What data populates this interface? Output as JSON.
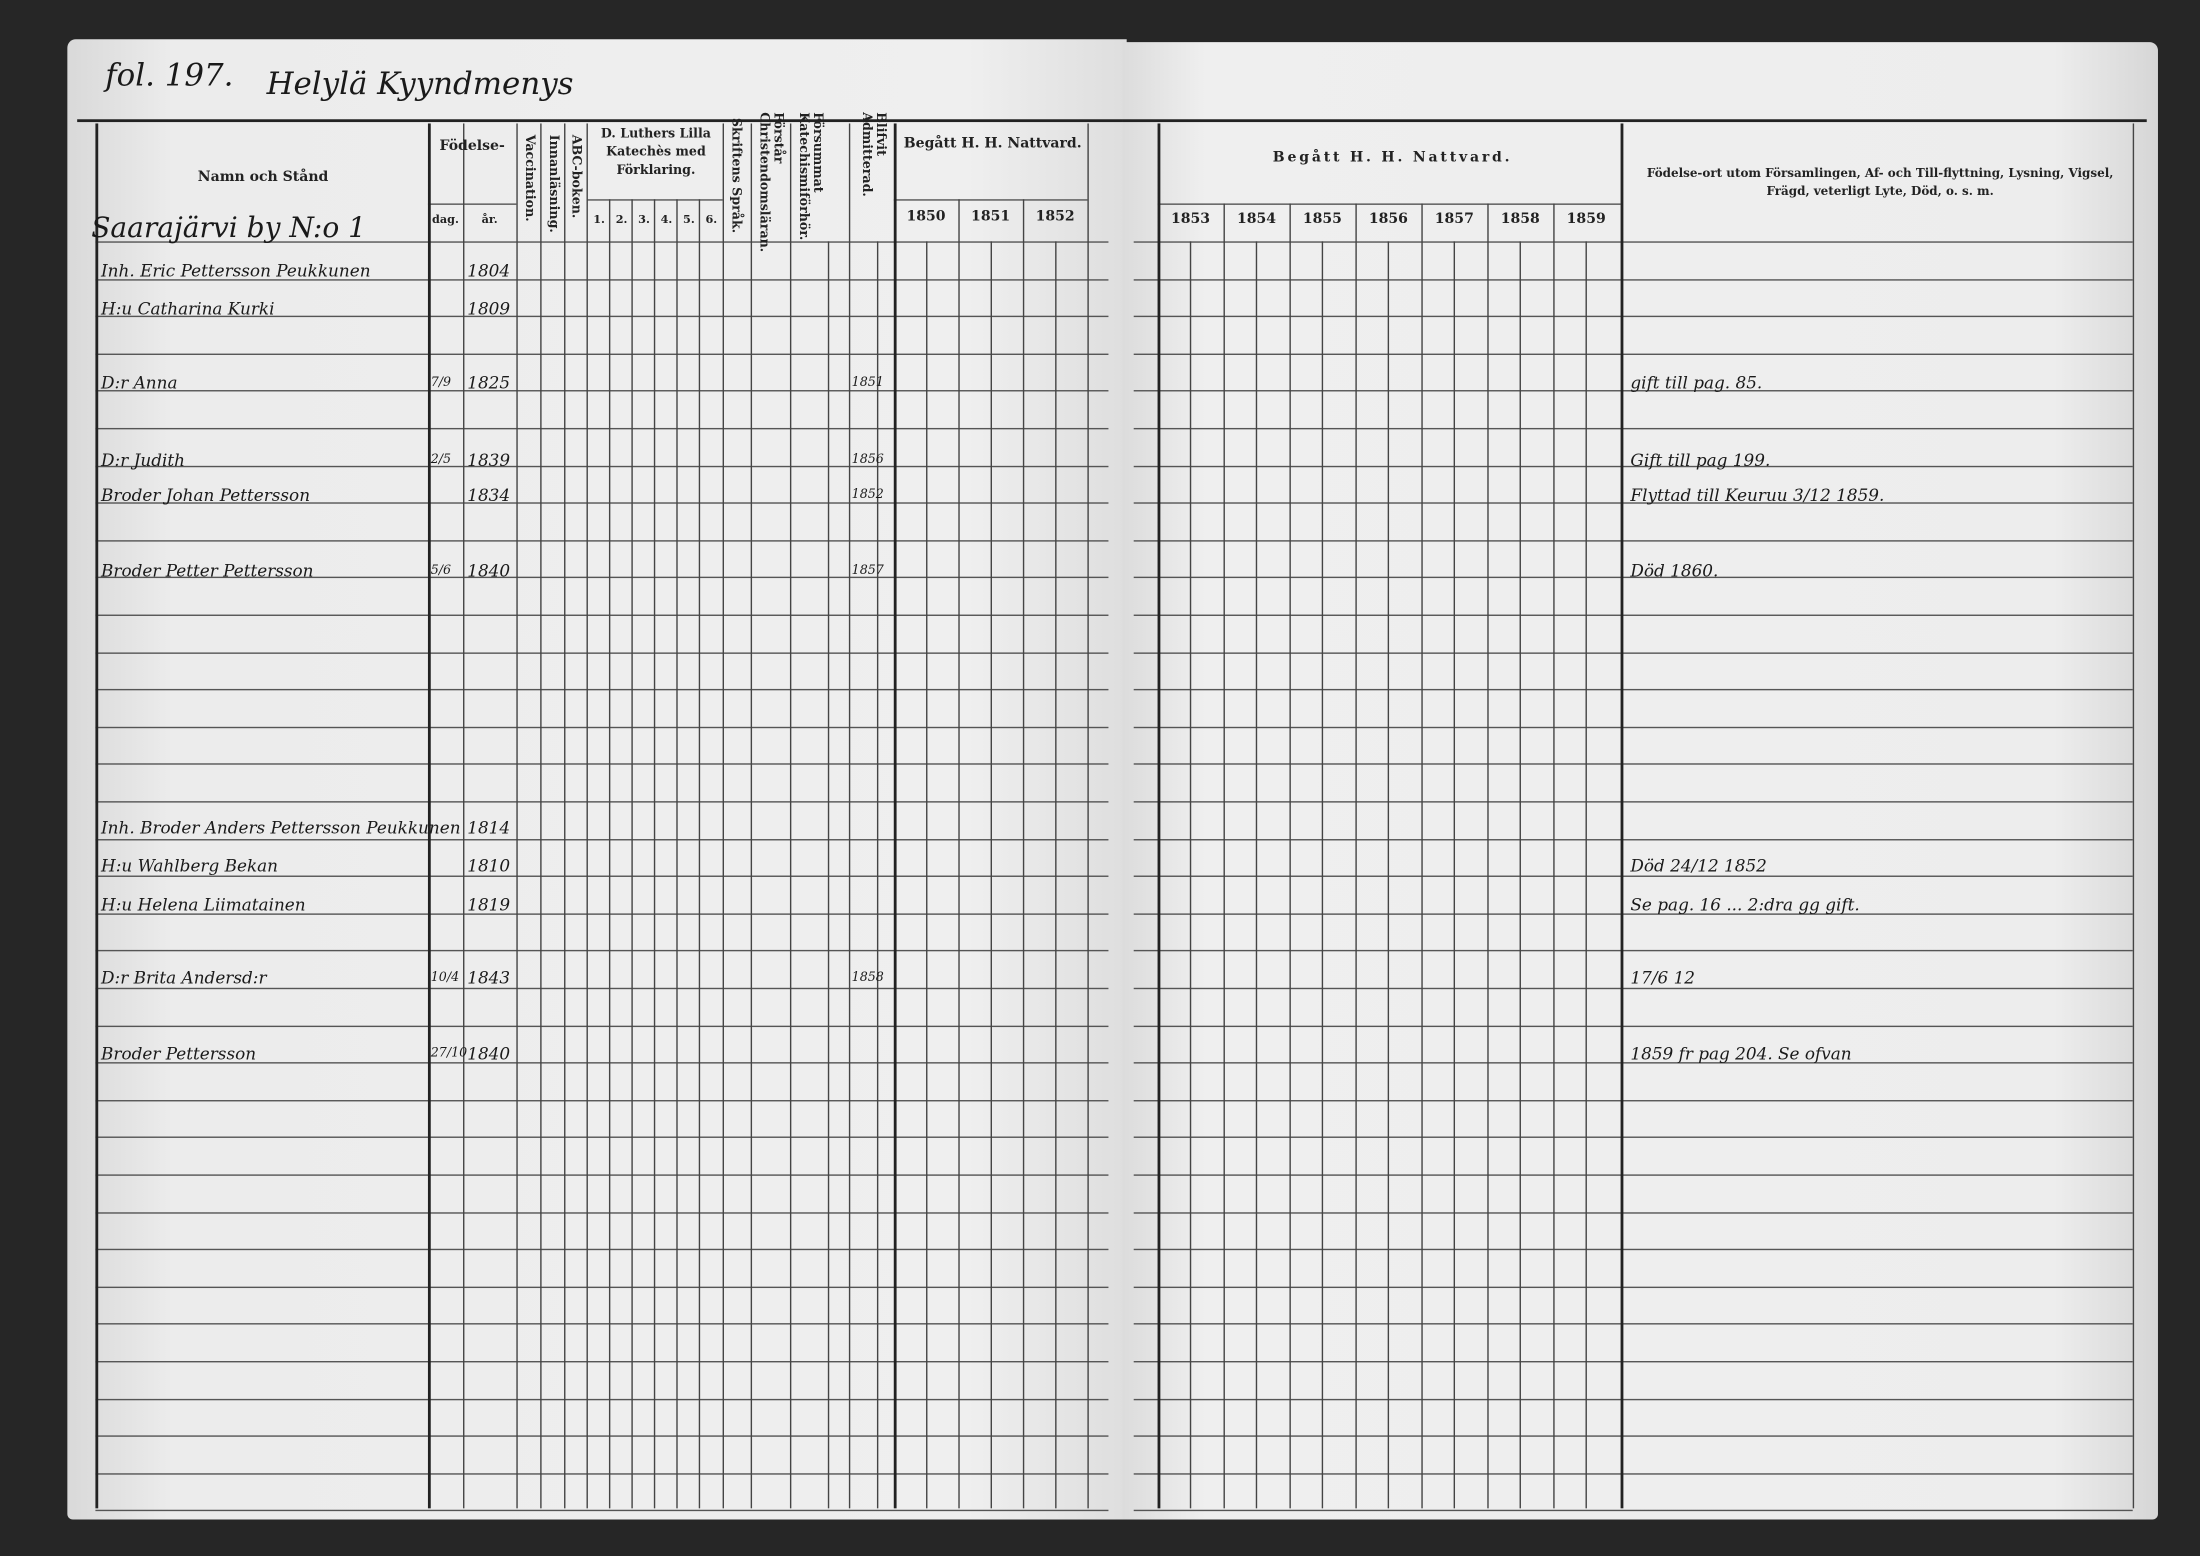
{
  "document": {
    "folio": "fol. 197.",
    "village_heading": "Helylä Kyyndmenys",
    "household": "Saarajärvi by N:o 1"
  },
  "headers": {
    "name": "Namn och Stånd",
    "birth": "Födelse-",
    "birth_day": "dag.",
    "birth_year": "år.",
    "vaccination": "Vaccination.",
    "reading": "Innanläsning.",
    "abc": "ABC-boken.",
    "catechism": "D. Luthers Lilla Katechès med Förklaring.",
    "catechism_parts": [
      "1.",
      "2.",
      "3.",
      "4.",
      "5.",
      "6."
    ],
    "scripture": "Skriftens Språk.",
    "understands": "Förstår Christendomsläran.",
    "neglected": "Försummat Katechismiförhör.",
    "admitted": "Blifvit Admitterad.",
    "communion_left": "Begått H. H. Nattvard.",
    "years_left": [
      "1850",
      "1851",
      "1852"
    ],
    "communion_right": "Begått H. H. Nattvard.",
    "years_right": [
      "1853",
      "1854",
      "1855",
      "1856",
      "1857",
      "1858",
      "1859"
    ],
    "remarks": "Födelse-ort utom Församlingen, Af- och Till-flyttning, Lysning, Vigsel, Frägd, veterligt Lyte, Död, o. s. m."
  },
  "entries": [
    {
      "name": "Inh. Eric Pettersson Peukkunen",
      "day": "",
      "year": "1804",
      "admitted": "",
      "remark": ""
    },
    {
      "name": "H:u Catharina Kurki",
      "day": "",
      "year": "1809",
      "admitted": "",
      "remark": ""
    },
    {
      "name": "D:r Anna",
      "day": "7/9",
      "year": "1825",
      "admitted": "1851",
      "remark": "gift till pag. 85."
    },
    {
      "name": "D:r Judith",
      "day": "2/5",
      "year": "1839",
      "admitted": "1856",
      "remark": "Gift till pag 199."
    },
    {
      "name": "Broder Johan Pettersson",
      "day": "",
      "year": "1834",
      "admitted": "1852",
      "remark": "Flyttad till Keuruu 3/12 1859."
    },
    {
      "name": "Broder Petter Pettersson",
      "day": "5/6",
      "year": "1840",
      "admitted": "1857",
      "remark": "Död 1860."
    },
    {
      "name": "Inh. Broder Anders Pettersson Peukkunen",
      "day": "",
      "year": "1814",
      "admitted": "",
      "remark": ""
    },
    {
      "name": "H:u Wahlberg Bekan",
      "day": "",
      "year": "1810",
      "admitted": "",
      "remark": "Död 24/12 1852"
    },
    {
      "name": "H:u Helena Liimatainen",
      "day": "",
      "year": "1819",
      "admitted": "",
      "remark": "Se pag. 16 ... 2:dra gg gift."
    },
    {
      "name": "D:r Brita Andersd:r",
      "day": "10/4",
      "year": "1843",
      "admitted": "1858",
      "remark": "17/6 12"
    },
    {
      "name": "Broder Pettersson",
      "day": "27/10",
      "year": "1840",
      "admitted": "",
      "remark": "1859 fr pag 204. Se ofvan"
    }
  ]
}
